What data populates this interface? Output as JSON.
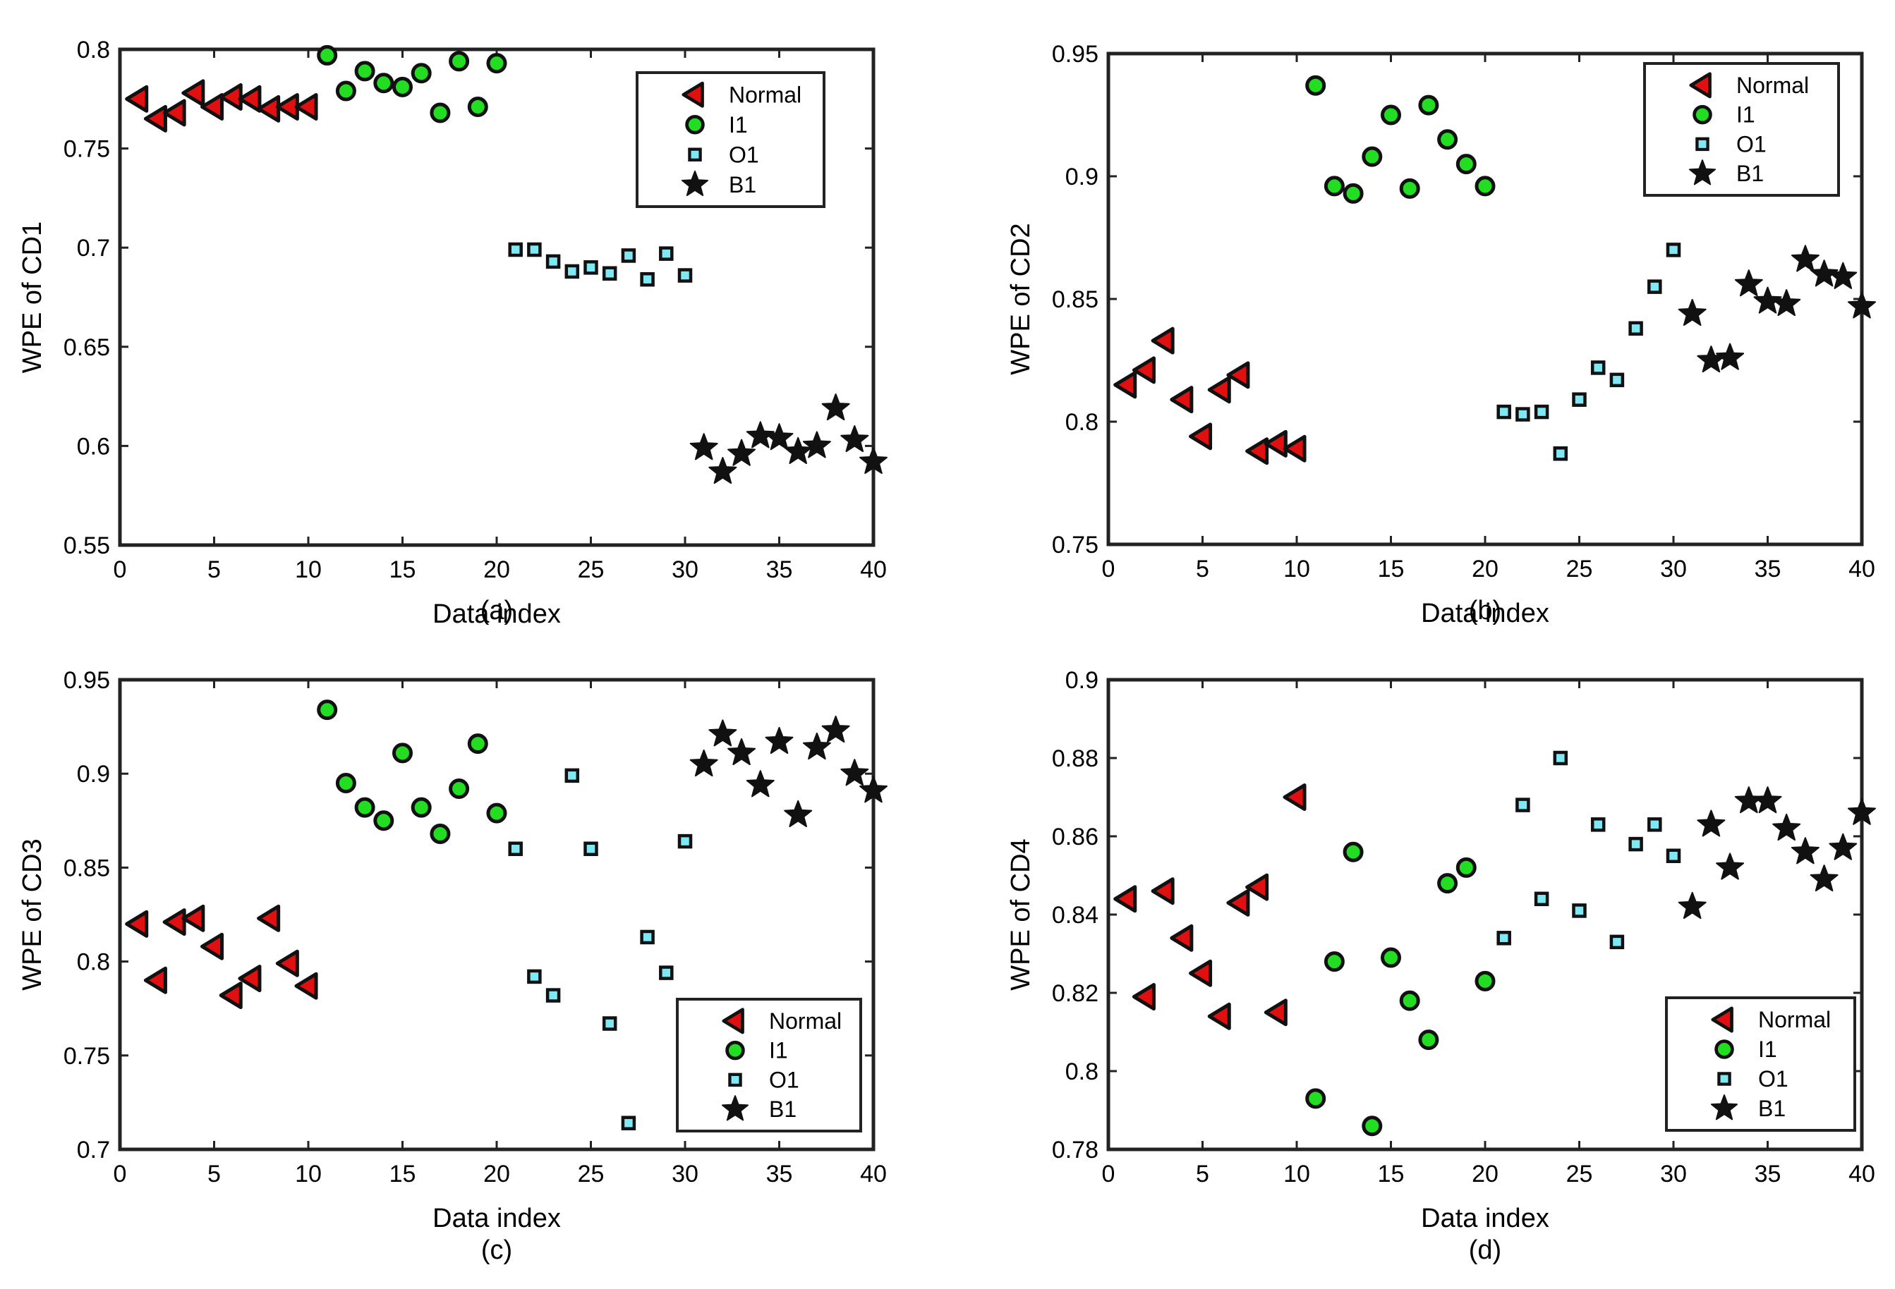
{
  "colors": {
    "Normal": "#e01010",
    "I1": "#22dd22",
    "O1": "#7fe8f5",
    "B1": "#111111"
  },
  "chart_data": [
    {
      "type": "scatter",
      "caption": "(a)",
      "xlabel": "Data index",
      "ylabel": "WPE of CD1",
      "xlim": [
        0,
        40
      ],
      "ylim": [
        0.55,
        0.8
      ],
      "xticks": [
        "0",
        "5",
        "10",
        "15",
        "20",
        "25",
        "30",
        "35",
        "40"
      ],
      "yticks": [
        "0.55",
        "0.6",
        "0.65",
        "0.7",
        "0.75",
        "0.8"
      ],
      "legend_position": "top-right",
      "series": [
        {
          "name": "Normal",
          "marker": "left-triangle",
          "x": [
            1,
            2,
            3,
            4,
            5,
            6,
            7,
            8,
            9,
            10
          ],
          "y": [
            0.775,
            0.765,
            0.768,
            0.778,
            0.771,
            0.776,
            0.775,
            0.77,
            0.771,
            0.771
          ]
        },
        {
          "name": "I1",
          "marker": "circle",
          "x": [
            11,
            12,
            13,
            14,
            15,
            16,
            17,
            18,
            19,
            20
          ],
          "y": [
            0.797,
            0.779,
            0.789,
            0.783,
            0.781,
            0.788,
            0.768,
            0.794,
            0.771,
            0.793
          ]
        },
        {
          "name": "O1",
          "marker": "square",
          "x": [
            21,
            22,
            23,
            24,
            25,
            26,
            27,
            28,
            29,
            30
          ],
          "y": [
            0.699,
            0.699,
            0.693,
            0.688,
            0.69,
            0.687,
            0.696,
            0.684,
            0.697,
            0.686
          ]
        },
        {
          "name": "B1",
          "marker": "star",
          "x": [
            31,
            32,
            33,
            34,
            35,
            36,
            37,
            38,
            39,
            40
          ],
          "y": [
            0.599,
            0.587,
            0.596,
            0.605,
            0.604,
            0.597,
            0.6,
            0.619,
            0.603,
            0.592
          ]
        }
      ]
    },
    {
      "type": "scatter",
      "caption": "(b)",
      "xlabel": "Data index",
      "ylabel": "WPE of CD2",
      "xlim": [
        0,
        40
      ],
      "ylim": [
        0.75,
        0.95
      ],
      "xticks": [
        "0",
        "5",
        "10",
        "15",
        "20",
        "25",
        "30",
        "35",
        "40"
      ],
      "yticks": [
        "0.75",
        "0.8",
        "0.85",
        "0.9",
        "0.95"
      ],
      "legend_position": "top-right",
      "series": [
        {
          "name": "Normal",
          "marker": "left-triangle",
          "x": [
            1,
            2,
            3,
            4,
            5,
            6,
            7,
            8,
            9,
            10
          ],
          "y": [
            0.815,
            0.821,
            0.833,
            0.809,
            0.794,
            0.813,
            0.819,
            0.788,
            0.791,
            0.789
          ]
        },
        {
          "name": "I1",
          "marker": "circle",
          "x": [
            11,
            12,
            13,
            14,
            15,
            16,
            17,
            18,
            19,
            20
          ],
          "y": [
            0.937,
            0.896,
            0.893,
            0.908,
            0.925,
            0.895,
            0.929,
            0.915,
            0.905,
            0.896
          ]
        },
        {
          "name": "O1",
          "marker": "square",
          "x": [
            21,
            22,
            23,
            24,
            25,
            26,
            27,
            28,
            29,
            30
          ],
          "y": [
            0.804,
            0.803,
            0.804,
            0.787,
            0.809,
            0.822,
            0.817,
            0.838,
            0.855,
            0.87
          ]
        },
        {
          "name": "B1",
          "marker": "star",
          "x": [
            31,
            32,
            33,
            34,
            35,
            36,
            37,
            38,
            39,
            40
          ],
          "y": [
            0.844,
            0.825,
            0.826,
            0.856,
            0.849,
            0.848,
            0.866,
            0.86,
            0.859,
            0.847
          ]
        }
      ]
    },
    {
      "type": "scatter",
      "caption": "(c)",
      "xlabel": "Data index",
      "ylabel": "WPE of CD3",
      "xlim": [
        0,
        40
      ],
      "ylim": [
        0.7,
        0.95
      ],
      "xticks": [
        "0",
        "5",
        "10",
        "15",
        "20",
        "25",
        "30",
        "35",
        "40"
      ],
      "yticks": [
        "0.7",
        "0.75",
        "0.8",
        "0.85",
        "0.9",
        "0.95"
      ],
      "legend_position": "bottom-right",
      "series": [
        {
          "name": "Normal",
          "marker": "left-triangle",
          "x": [
            1,
            2,
            3,
            4,
            5,
            6,
            7,
            8,
            9,
            10
          ],
          "y": [
            0.82,
            0.79,
            0.821,
            0.823,
            0.808,
            0.782,
            0.791,
            0.823,
            0.799,
            0.787
          ]
        },
        {
          "name": "I1",
          "marker": "circle",
          "x": [
            11,
            12,
            13,
            14,
            15,
            16,
            17,
            18,
            19,
            20
          ],
          "y": [
            0.934,
            0.895,
            0.882,
            0.875,
            0.911,
            0.882,
            0.868,
            0.892,
            0.916,
            0.879
          ]
        },
        {
          "name": "O1",
          "marker": "square",
          "x": [
            21,
            22,
            23,
            24,
            25,
            26,
            27,
            28,
            29,
            30
          ],
          "y": [
            0.86,
            0.792,
            0.782,
            0.899,
            0.86,
            0.767,
            0.714,
            0.813,
            0.794,
            0.864
          ]
        },
        {
          "name": "B1",
          "marker": "star",
          "x": [
            31,
            32,
            33,
            34,
            35,
            36,
            37,
            38,
            39,
            40
          ],
          "y": [
            0.905,
            0.921,
            0.911,
            0.894,
            0.917,
            0.878,
            0.914,
            0.923,
            0.9,
            0.891
          ]
        }
      ]
    },
    {
      "type": "scatter",
      "caption": "(d)",
      "xlabel": "Data index",
      "ylabel": "WPE of CD4",
      "xlim": [
        0,
        40
      ],
      "ylim": [
        0.78,
        0.9
      ],
      "xticks": [
        "0",
        "5",
        "10",
        "15",
        "20",
        "25",
        "30",
        "35",
        "40"
      ],
      "yticks": [
        "0.78",
        "0.8",
        "0.82",
        "0.84",
        "0.86",
        "0.88",
        "0.9"
      ],
      "legend_position": "bottom-right",
      "series": [
        {
          "name": "Normal",
          "marker": "left-triangle",
          "x": [
            1,
            2,
            3,
            4,
            5,
            6,
            7,
            8,
            9,
            10
          ],
          "y": [
            0.844,
            0.819,
            0.846,
            0.834,
            0.825,
            0.814,
            0.843,
            0.847,
            0.815,
            0.87
          ]
        },
        {
          "name": "I1",
          "marker": "circle",
          "x": [
            11,
            12,
            13,
            14,
            15,
            16,
            17,
            18,
            19,
            20
          ],
          "y": [
            0.793,
            0.828,
            0.856,
            0.786,
            0.829,
            0.818,
            0.808,
            0.848,
            0.852,
            0.823
          ]
        },
        {
          "name": "O1",
          "marker": "square",
          "x": [
            21,
            22,
            23,
            24,
            25,
            26,
            27,
            28,
            29,
            30
          ],
          "y": [
            0.834,
            0.868,
            0.844,
            0.88,
            0.841,
            0.863,
            0.833,
            0.858,
            0.863,
            0.855
          ]
        },
        {
          "name": "B1",
          "marker": "star",
          "x": [
            31,
            32,
            33,
            34,
            35,
            36,
            37,
            38,
            39,
            40
          ],
          "y": [
            0.842,
            0.863,
            0.852,
            0.869,
            0.869,
            0.862,
            0.856,
            0.849,
            0.857,
            0.866
          ]
        }
      ]
    }
  ]
}
